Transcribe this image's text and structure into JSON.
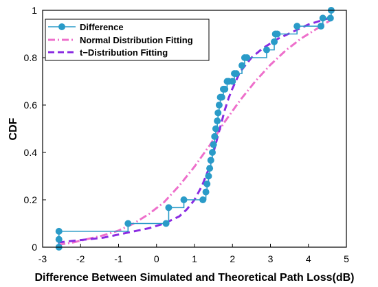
{
  "chart_data": {
    "type": "line",
    "xlabel": "Difference Between Simulated and Theoretical Path Loss(dB)",
    "ylabel": "CDF",
    "xlim": [
      -3,
      5
    ],
    "ylim": [
      0,
      1
    ],
    "xticks": [
      "-3",
      "-2",
      "-1",
      "0",
      "1",
      "2",
      "3",
      "4",
      "5"
    ],
    "yticks": [
      "0",
      "0.2",
      "0.4",
      "0.6",
      "0.8",
      "1"
    ],
    "grid": false,
    "legend_position": "top-left",
    "series": [
      {
        "name": "Difference",
        "style": "stairs-markers",
        "color": "#2a9bc8",
        "x": [
          -2.57,
          -2.57,
          -2.57,
          -0.75,
          0.25,
          0.32,
          0.72,
          1.22,
          1.3,
          1.33,
          1.37,
          1.4,
          1.43,
          1.47,
          1.5,
          1.53,
          1.56,
          1.6,
          1.62,
          1.65,
          1.68,
          1.72,
          1.76,
          1.8,
          1.86,
          1.9,
          2.0,
          2.05,
          2.1,
          2.25,
          2.32,
          2.38,
          2.9,
          3.1,
          3.13,
          3.18,
          3.7,
          4.33,
          4.38,
          4.58,
          4.6
        ],
        "y": [
          0.0,
          0.033,
          0.067,
          0.1,
          0.1,
          0.167,
          0.2,
          0.2,
          0.233,
          0.267,
          0.3,
          0.333,
          0.367,
          0.4,
          0.433,
          0.467,
          0.5,
          0.533,
          0.567,
          0.6,
          0.633,
          0.633,
          0.667,
          0.667,
          0.7,
          0.7,
          0.7,
          0.733,
          0.733,
          0.767,
          0.8,
          0.8,
          0.833,
          0.867,
          0.9,
          0.9,
          0.933,
          0.933,
          0.967,
          0.967,
          1.0
        ]
      },
      {
        "name": "Normal Distribution Fitting",
        "style": "dash-dot",
        "color": "#ee6fcb",
        "x": [
          -2.6,
          -2.2,
          -1.8,
          -1.4,
          -1.0,
          -0.6,
          -0.2,
          0.2,
          0.6,
          1.0,
          1.4,
          1.6,
          1.8,
          2.2,
          2.6,
          3.0,
          3.4,
          3.8,
          4.2,
          4.6
        ],
        "y": [
          0.01,
          0.02,
          0.035,
          0.05,
          0.07,
          0.1,
          0.14,
          0.19,
          0.26,
          0.34,
          0.43,
          0.48,
          0.53,
          0.62,
          0.7,
          0.77,
          0.83,
          0.88,
          0.92,
          0.96
        ]
      },
      {
        "name": "t−Distribution Fitting",
        "style": "dashed",
        "color": "#8a2be2",
        "x": [
          -2.6,
          -2.0,
          -1.4,
          -0.8,
          -0.2,
          0.2,
          0.6,
          0.8,
          1.0,
          1.2,
          1.4,
          1.5,
          1.6,
          1.7,
          1.8,
          1.9,
          2.0,
          2.2,
          2.5,
          2.8,
          3.2,
          3.6,
          4.0,
          4.5
        ],
        "y": [
          0.02,
          0.03,
          0.04,
          0.06,
          0.08,
          0.1,
          0.13,
          0.16,
          0.2,
          0.26,
          0.34,
          0.4,
          0.46,
          0.52,
          0.58,
          0.63,
          0.67,
          0.74,
          0.8,
          0.84,
          0.88,
          0.91,
          0.94,
          0.965
        ]
      }
    ]
  }
}
